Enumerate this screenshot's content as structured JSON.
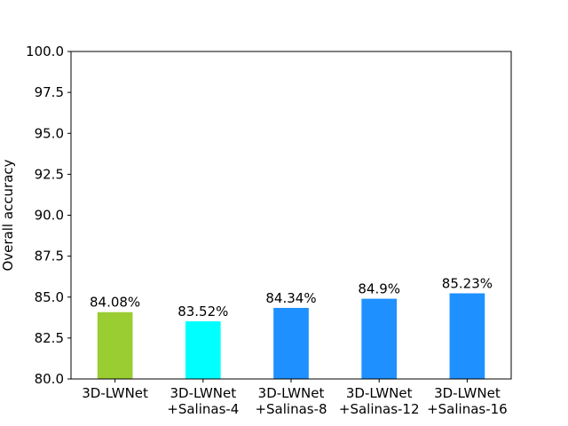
{
  "chart_data": {
    "type": "bar",
    "title": "",
    "xlabel": "",
    "ylabel": "Overall accuracy",
    "ylim": [
      80.0,
      100.0
    ],
    "yticks": [
      "80.0",
      "82.5",
      "85.0",
      "87.5",
      "90.0",
      "92.5",
      "95.0",
      "97.5",
      "100.0"
    ],
    "grid": false,
    "categories": [
      [
        "3D-LWNet"
      ],
      [
        "3D-LWNet",
        "+Salinas-4"
      ],
      [
        "3D-LWNet",
        "+Salinas-8"
      ],
      [
        "3D-LWNet",
        "+Salinas-12"
      ],
      [
        "3D-LWNet",
        "+Salinas-16"
      ]
    ],
    "values": [
      84.08,
      83.52,
      84.34,
      84.9,
      85.23
    ],
    "value_labels": [
      "84.08%",
      "83.52%",
      "84.34%",
      "84.9%",
      "85.23%"
    ],
    "colors": [
      "#9acd32",
      "#00ffff",
      "#1e90ff",
      "#1e90ff",
      "#1e90ff"
    ]
  }
}
